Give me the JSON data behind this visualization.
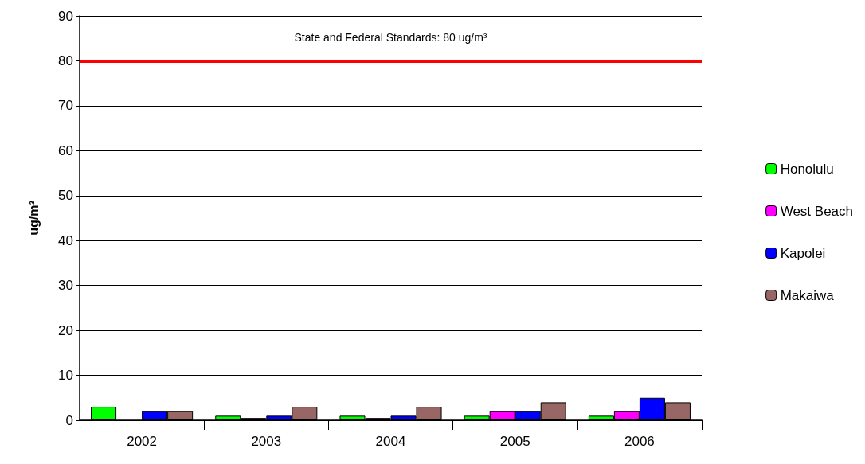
{
  "chart_data": {
    "type": "bar",
    "ylabel": "ug/m³",
    "categories": [
      "2002",
      "2003",
      "2004",
      "2005",
      "2006"
    ],
    "series": [
      {
        "name": "Honolulu",
        "color": "#00ff00",
        "values": [
          3,
          1,
          1,
          1,
          1
        ]
      },
      {
        "name": "West Beach",
        "color": "#ff00ff",
        "values": [
          null,
          0.5,
          0.5,
          2,
          2
        ]
      },
      {
        "name": "Kapolei",
        "color": "#0000ff",
        "values": [
          2,
          1,
          1,
          2,
          5
        ]
      },
      {
        "name": "Makaiwa",
        "color": "#996666",
        "values": [
          2,
          3,
          3,
          4,
          4
        ]
      }
    ],
    "ylim": [
      0,
      90
    ],
    "yticks": [
      0,
      10,
      20,
      30,
      40,
      50,
      60,
      70,
      80,
      90
    ],
    "grid": "y",
    "legend": "right",
    "ref_lines": [
      {
        "axis": "y",
        "value": 80,
        "label": "State and Federal Standards: 80 ug/m³",
        "color": "#ff0000"
      }
    ]
  }
}
